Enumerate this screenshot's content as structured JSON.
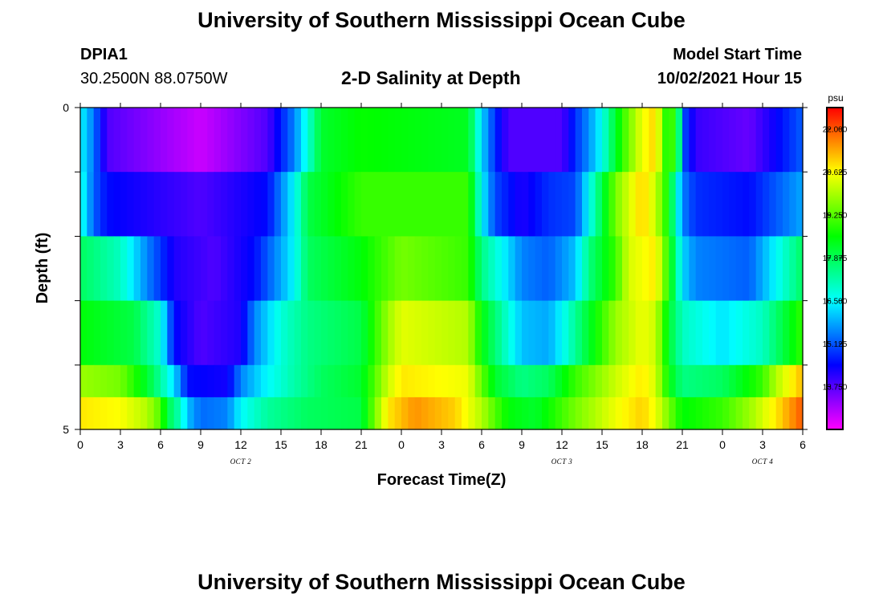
{
  "main_title": "University of Southern Mississippi Ocean Cube",
  "footer_title": "University of Southern Mississippi Ocean Cube",
  "station": {
    "id": "DPIA1",
    "coords": "30.2500N  88.0750W"
  },
  "model": {
    "label": "Model Start Time",
    "time": "10/02/2021 Hour 15"
  },
  "chart_data": {
    "type": "heatmap",
    "title": "2-D Salinity at Depth",
    "xlabel": "Forecast Time(Z)",
    "ylabel": "Depth (ft)",
    "x_ticks": [
      "0",
      "3",
      "6",
      "9",
      "12",
      "15",
      "18",
      "21",
      "0",
      "3",
      "6",
      "9",
      "12",
      "15",
      "18",
      "21",
      "0",
      "3",
      "6"
    ],
    "date_labels": [
      {
        "hour_index": 12,
        "label": "OCT 2"
      },
      {
        "hour_index": 36,
        "label": "OCT 3"
      },
      {
        "hour_index": 51,
        "label": "OCT 4"
      }
    ],
    "x_range_hours": [
      0,
      54
    ],
    "y_ticks": [
      "0",
      "5"
    ],
    "y_range": [
      0,
      5
    ],
    "depth_levels": [
      0,
      1,
      2,
      3,
      4,
      5
    ],
    "colorbar": {
      "unit": "psu",
      "min": 12.375,
      "max": 22.6875,
      "tick_labels": [
        "22.000",
        "20.625",
        "19.250",
        "17.875",
        "16.500",
        "15.125",
        "13.750"
      ],
      "tick_values": [
        22.0,
        20.625,
        19.25,
        17.875,
        16.5,
        15.125,
        13.75
      ]
    },
    "salinity_rows": [
      {
        "depth_band": "0-1",
        "knots": [
          [
            0,
            16.5
          ],
          [
            1,
            15.4
          ],
          [
            2,
            13.8
          ],
          [
            9,
            12.8
          ],
          [
            14,
            13.8
          ],
          [
            16,
            15.5
          ],
          [
            17,
            16.8
          ],
          [
            18,
            18.2
          ],
          [
            21,
            18.6
          ],
          [
            29,
            18.3
          ],
          [
            30,
            16.2
          ],
          [
            31,
            14.8
          ],
          [
            32,
            13.8
          ],
          [
            36,
            13.8
          ],
          [
            37,
            14.8
          ],
          [
            38,
            15.6
          ],
          [
            39,
            16.6
          ],
          [
            40,
            18.2
          ],
          [
            41,
            19.5
          ],
          [
            42,
            20.5
          ],
          [
            43,
            21.0
          ],
          [
            43.5,
            19.6
          ],
          [
            44,
            18.2
          ],
          [
            44.5,
            19.8
          ],
          [
            45,
            15.2
          ],
          [
            46,
            14.0
          ],
          [
            50,
            13.6
          ],
          [
            54,
            15.2
          ]
        ]
      },
      {
        "depth_band": "1-2",
        "knots": [
          [
            0,
            16.8
          ],
          [
            1,
            15.2
          ],
          [
            2,
            14.5
          ],
          [
            9,
            13.8
          ],
          [
            14,
            14.5
          ],
          [
            15,
            15.5
          ],
          [
            16,
            16.5
          ],
          [
            17,
            18.0
          ],
          [
            21,
            19.0
          ],
          [
            29,
            19.0
          ],
          [
            30,
            16.5
          ],
          [
            31,
            15.0
          ],
          [
            33,
            14.2
          ],
          [
            35,
            14.8
          ],
          [
            37,
            15.0
          ],
          [
            38,
            16.5
          ],
          [
            39,
            18.0
          ],
          [
            40,
            19.5
          ],
          [
            41,
            20.3
          ],
          [
            42,
            21.0
          ],
          [
            43,
            20.2
          ],
          [
            44,
            18.5
          ],
          [
            45,
            15.5
          ],
          [
            46,
            14.8
          ],
          [
            50,
            14.5
          ],
          [
            54,
            15.8
          ]
        ]
      },
      {
        "depth_band": "2-3",
        "knots": [
          [
            0,
            17.8
          ],
          [
            3,
            17.0
          ],
          [
            5,
            15.5
          ],
          [
            7,
            14.2
          ],
          [
            10,
            13.8
          ],
          [
            13,
            14.5
          ],
          [
            15,
            15.8
          ],
          [
            16,
            16.5
          ],
          [
            17,
            17.8
          ],
          [
            21,
            18.5
          ],
          [
            24,
            19.5
          ],
          [
            29,
            19.0
          ],
          [
            30,
            17.5
          ],
          [
            32,
            16.2
          ],
          [
            33,
            15.5
          ],
          [
            35,
            15.2
          ],
          [
            37,
            16.0
          ],
          [
            38,
            17.5
          ],
          [
            40,
            19.0
          ],
          [
            41,
            20.3
          ],
          [
            43,
            20.8
          ],
          [
            44,
            18.8
          ],
          [
            45,
            16.2
          ],
          [
            46,
            15.5
          ],
          [
            50,
            15.2
          ],
          [
            52,
            16.5
          ],
          [
            54,
            17.8
          ]
        ]
      },
      {
        "depth_band": "3-4",
        "knots": [
          [
            0,
            18.5
          ],
          [
            4,
            18.0
          ],
          [
            6,
            16.8
          ],
          [
            7,
            14.5
          ],
          [
            9,
            13.8
          ],
          [
            12,
            14.2
          ],
          [
            13,
            15.5
          ],
          [
            15,
            16.8
          ],
          [
            17,
            17.5
          ],
          [
            21,
            18.0
          ],
          [
            23,
            19.8
          ],
          [
            24,
            20.4
          ],
          [
            29,
            20.0
          ],
          [
            30,
            18.5
          ],
          [
            32,
            16.8
          ],
          [
            33,
            16.0
          ],
          [
            35,
            15.8
          ],
          [
            36,
            16.5
          ],
          [
            38,
            18.2
          ],
          [
            40,
            19.8
          ],
          [
            42,
            20.5
          ],
          [
            43,
            20.2
          ],
          [
            44,
            18.2
          ],
          [
            45,
            17.0
          ],
          [
            48,
            16.3
          ],
          [
            51,
            17.0
          ],
          [
            54,
            19.0
          ]
        ]
      },
      {
        "depth_band": "4-5",
        "knots": [
          [
            0,
            19.8
          ],
          [
            3,
            19.5
          ],
          [
            5,
            18.2
          ],
          [
            6.5,
            16.8
          ],
          [
            7.5,
            15.5
          ],
          [
            8,
            14.5
          ],
          [
            11,
            14.3
          ],
          [
            12,
            15.5
          ],
          [
            14,
            16.5
          ],
          [
            16,
            17.2
          ],
          [
            18,
            17.8
          ],
          [
            21,
            18.2
          ],
          [
            23,
            20.2
          ],
          [
            24,
            20.8
          ],
          [
            29,
            20.5
          ],
          [
            31,
            18.2
          ],
          [
            33,
            17.5
          ],
          [
            35,
            17.8
          ],
          [
            37,
            19.0
          ],
          [
            40,
            20.2
          ],
          [
            42,
            20.8
          ],
          [
            43,
            20.3
          ],
          [
            44,
            18.5
          ],
          [
            45,
            17.5
          ],
          [
            48,
            17.8
          ],
          [
            51,
            19.0
          ],
          [
            52,
            20.0
          ],
          [
            54,
            21.2
          ]
        ]
      },
      {
        "depth_band": "5",
        "knots": [
          [
            0,
            20.8
          ],
          [
            3,
            20.6
          ],
          [
            5,
            20.0
          ],
          [
            6,
            19.2
          ],
          [
            6.5,
            18.0
          ],
          [
            7.5,
            17.0
          ],
          [
            8,
            16.0
          ],
          [
            9,
            15.3
          ],
          [
            11,
            15.5
          ],
          [
            12,
            16.5
          ],
          [
            14,
            17.3
          ],
          [
            17,
            17.8
          ],
          [
            21,
            18.0
          ],
          [
            22,
            19.5
          ],
          [
            23,
            20.8
          ],
          [
            25,
            21.5
          ],
          [
            28,
            21.0
          ],
          [
            30,
            20.0
          ],
          [
            31,
            19.2
          ],
          [
            32,
            18.5
          ],
          [
            34,
            18.2
          ],
          [
            37,
            19.5
          ],
          [
            40,
            20.5
          ],
          [
            42,
            21.0
          ],
          [
            43,
            20.5
          ],
          [
            44,
            19.5
          ],
          [
            45,
            18.5
          ],
          [
            48,
            19.0
          ],
          [
            50,
            19.8
          ],
          [
            52,
            20.8
          ],
          [
            54,
            22.0
          ]
        ]
      }
    ]
  }
}
